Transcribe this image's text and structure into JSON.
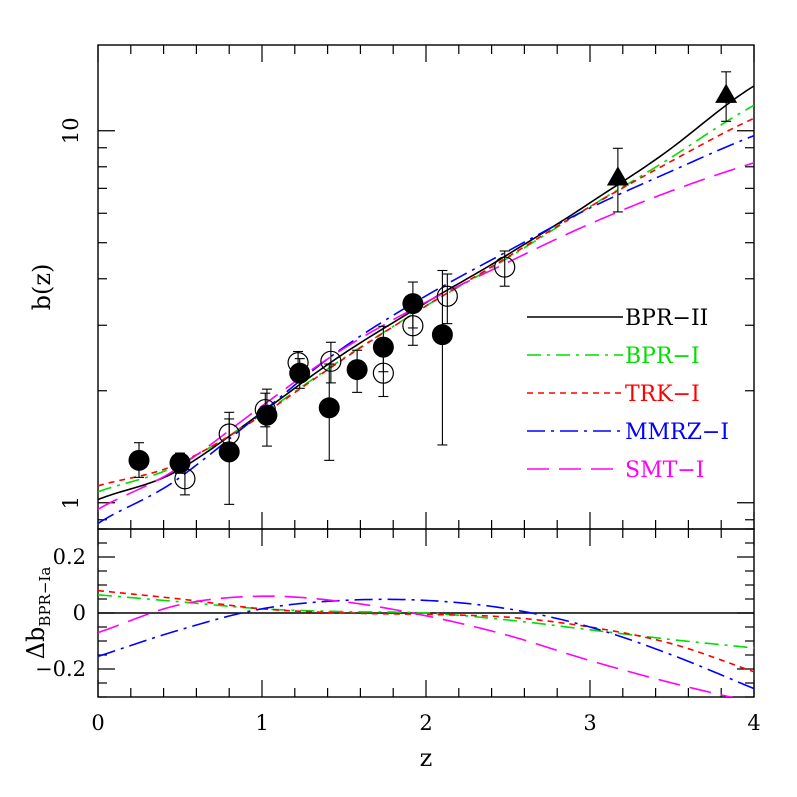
{
  "chart_data": [
    {
      "type": "scatter",
      "panel": "top",
      "xlabel": "",
      "ylabel": "b(z)",
      "xlim": [
        0,
        4
      ],
      "ylim": [
        0.85,
        17
      ],
      "yscale": "log",
      "yticks_labeled": [
        {
          "v": 1,
          "label": "1"
        },
        {
          "v": 10,
          "label": "10"
        }
      ],
      "series": [
        {
          "name": "filled circles",
          "marker": "filled-circle",
          "points": [
            {
              "x": 0.25,
              "y": 1.3,
              "lo": 1.17,
              "hi": 1.45
            },
            {
              "x": 0.5,
              "y": 1.28,
              "lo": 1.2,
              "hi": 1.36
            },
            {
              "x": 0.8,
              "y": 1.37,
              "lo": 0.99,
              "hi": 1.75
            },
            {
              "x": 1.03,
              "y": 1.72,
              "lo": 1.42,
              "hi": 2.02
            },
            {
              "x": 1.23,
              "y": 2.23,
              "lo": 2.03,
              "hi": 2.44
            },
            {
              "x": 1.41,
              "y": 1.8,
              "lo": 1.3,
              "hi": 2.36
            },
            {
              "x": 1.58,
              "y": 2.28,
              "lo": 1.98,
              "hi": 2.57
            },
            {
              "x": 1.74,
              "y": 2.62,
              "lo": 2.25,
              "hi": 2.98
            },
            {
              "x": 1.92,
              "y": 3.43,
              "lo": 2.95,
              "hi": 3.92
            },
            {
              "x": 2.1,
              "y": 2.83,
              "lo": 1.43,
              "hi": 4.21
            }
          ]
        },
        {
          "name": "open circles",
          "marker": "open-circle",
          "points": [
            {
              "x": 0.53,
              "y": 1.16,
              "lo": 1.05,
              "hi": 1.28
            },
            {
              "x": 0.8,
              "y": 1.53,
              "lo": 1.36,
              "hi": 1.68
            },
            {
              "x": 1.02,
              "y": 1.78,
              "lo": 1.6,
              "hi": 1.97
            },
            {
              "x": 1.22,
              "y": 2.38,
              "lo": 2.2,
              "hi": 2.55
            },
            {
              "x": 1.42,
              "y": 2.4,
              "lo": 2.1,
              "hi": 2.7
            },
            {
              "x": 1.74,
              "y": 2.23,
              "lo": 1.93,
              "hi": 2.52
            },
            {
              "x": 1.92,
              "y": 2.99,
              "lo": 2.65,
              "hi": 3.33
            },
            {
              "x": 2.13,
              "y": 3.59,
              "lo": 3.03,
              "hi": 4.12
            },
            {
              "x": 2.48,
              "y": 4.3,
              "lo": 3.82,
              "hi": 4.75
            }
          ]
        },
        {
          "name": "filled triangles",
          "marker": "filled-triangle",
          "points": [
            {
              "x": 3.17,
              "y": 7.5,
              "lo": 6.05,
              "hi": 8.97
            },
            {
              "x": 3.83,
              "y": 12.5,
              "lo": 10.6,
              "hi": 14.4
            }
          ]
        }
      ],
      "curves": [
        {
          "name": "BPR-II",
          "label": "BPR−II",
          "color": "#000000",
          "dash": "solid",
          "x": [
            0,
            0.5,
            1,
            1.5,
            2,
            2.5,
            3,
            3.5,
            4
          ],
          "y": [
            1.02,
            1.23,
            1.75,
            2.52,
            3.45,
            4.65,
            6.4,
            9.0,
            13.2
          ]
        },
        {
          "name": "BPR-I",
          "label": "BPR−I",
          "color": "#00dd00",
          "dash": "dashdot",
          "x": [
            0,
            0.5,
            1,
            1.5,
            2,
            2.5,
            3,
            3.5,
            4
          ],
          "y": [
            1.07,
            1.27,
            1.73,
            2.45,
            3.38,
            4.55,
            6.25,
            8.5,
            11.7
          ]
        },
        {
          "name": "TRK-I",
          "label": "TRK−I",
          "color": "#ff0000",
          "dash": "short-dash",
          "x": [
            0,
            0.5,
            1,
            1.5,
            2,
            2.5,
            3,
            3.5,
            4
          ],
          "y": [
            1.11,
            1.28,
            1.72,
            2.44,
            3.38,
            4.58,
            6.25,
            8.3,
            10.8
          ]
        },
        {
          "name": "MMRZ-I",
          "label": "MMRZ−I",
          "color": "#0000ff",
          "dash": "long-dashdot",
          "x": [
            0,
            0.5,
            1,
            1.5,
            2,
            2.5,
            3,
            3.5,
            4
          ],
          "y": [
            0.88,
            1.17,
            1.75,
            2.62,
            3.6,
            4.75,
            6.2,
            7.8,
            9.7
          ]
        },
        {
          "name": "SMT-I",
          "label": "SMT−I",
          "color": "#ff00ff",
          "dash": "long-dash",
          "x": [
            0,
            0.5,
            1,
            1.5,
            2,
            2.5,
            3,
            3.5,
            4
          ],
          "y": [
            0.96,
            1.25,
            1.82,
            2.6,
            3.46,
            4.43,
            5.62,
            6.9,
            8.2
          ]
        }
      ],
      "legend_position": "right-center"
    },
    {
      "type": "line",
      "panel": "bottom",
      "xlabel": "z",
      "ylabel": "Δb",
      "ylabel_sub": "BPR−Ia",
      "xlim": [
        0,
        4
      ],
      "ylim": [
        -0.3,
        0.3
      ],
      "xticks_labeled": [
        {
          "v": 0,
          "label": "0"
        },
        {
          "v": 1,
          "label": "1"
        },
        {
          "v": 2,
          "label": "2"
        },
        {
          "v": 3,
          "label": "3"
        },
        {
          "v": 4,
          "label": "4"
        }
      ],
      "yticks_labeled": [
        {
          "v": 0.2,
          "label": "0.2"
        },
        {
          "v": 0,
          "label": "0"
        },
        {
          "v": -0.2,
          "label": "−0.2"
        }
      ],
      "curves": [
        {
          "name": "BPR-II",
          "color": "#000000",
          "dash": "solid",
          "x": [
            0,
            4
          ],
          "y": [
            0,
            0
          ]
        },
        {
          "name": "BPR-I",
          "color": "#00dd00",
          "dash": "dashdot",
          "x": [
            0,
            0.5,
            1,
            1.5,
            2,
            2.5,
            3,
            3.5,
            4
          ],
          "y": [
            0.065,
            0.04,
            0.015,
            0.005,
            0.0,
            -0.025,
            -0.06,
            -0.095,
            -0.125
          ]
        },
        {
          "name": "TRK-I",
          "color": "#ff0000",
          "dash": "short-dash",
          "x": [
            0,
            0.5,
            1,
            1.5,
            2,
            2.5,
            3,
            3.5,
            4
          ],
          "y": [
            0.08,
            0.05,
            0.015,
            0.0,
            -0.005,
            -0.015,
            -0.05,
            -0.11,
            -0.21
          ]
        },
        {
          "name": "MMRZ-I",
          "color": "#0000ff",
          "dash": "long-dashdot",
          "x": [
            0,
            0.5,
            1,
            1.5,
            2,
            2.5,
            3,
            3.5,
            4
          ],
          "y": [
            -0.155,
            -0.06,
            0.015,
            0.045,
            0.045,
            0.015,
            -0.05,
            -0.15,
            -0.27
          ]
        },
        {
          "name": "SMT-I",
          "color": "#ff00ff",
          "dash": "long-dash",
          "x": [
            0,
            0.5,
            1,
            1.5,
            2,
            2.5,
            3,
            3.5,
            4
          ],
          "y": [
            -0.07,
            0.03,
            0.06,
            0.04,
            -0.01,
            -0.08,
            -0.17,
            -0.25,
            -0.32
          ]
        }
      ]
    }
  ]
}
